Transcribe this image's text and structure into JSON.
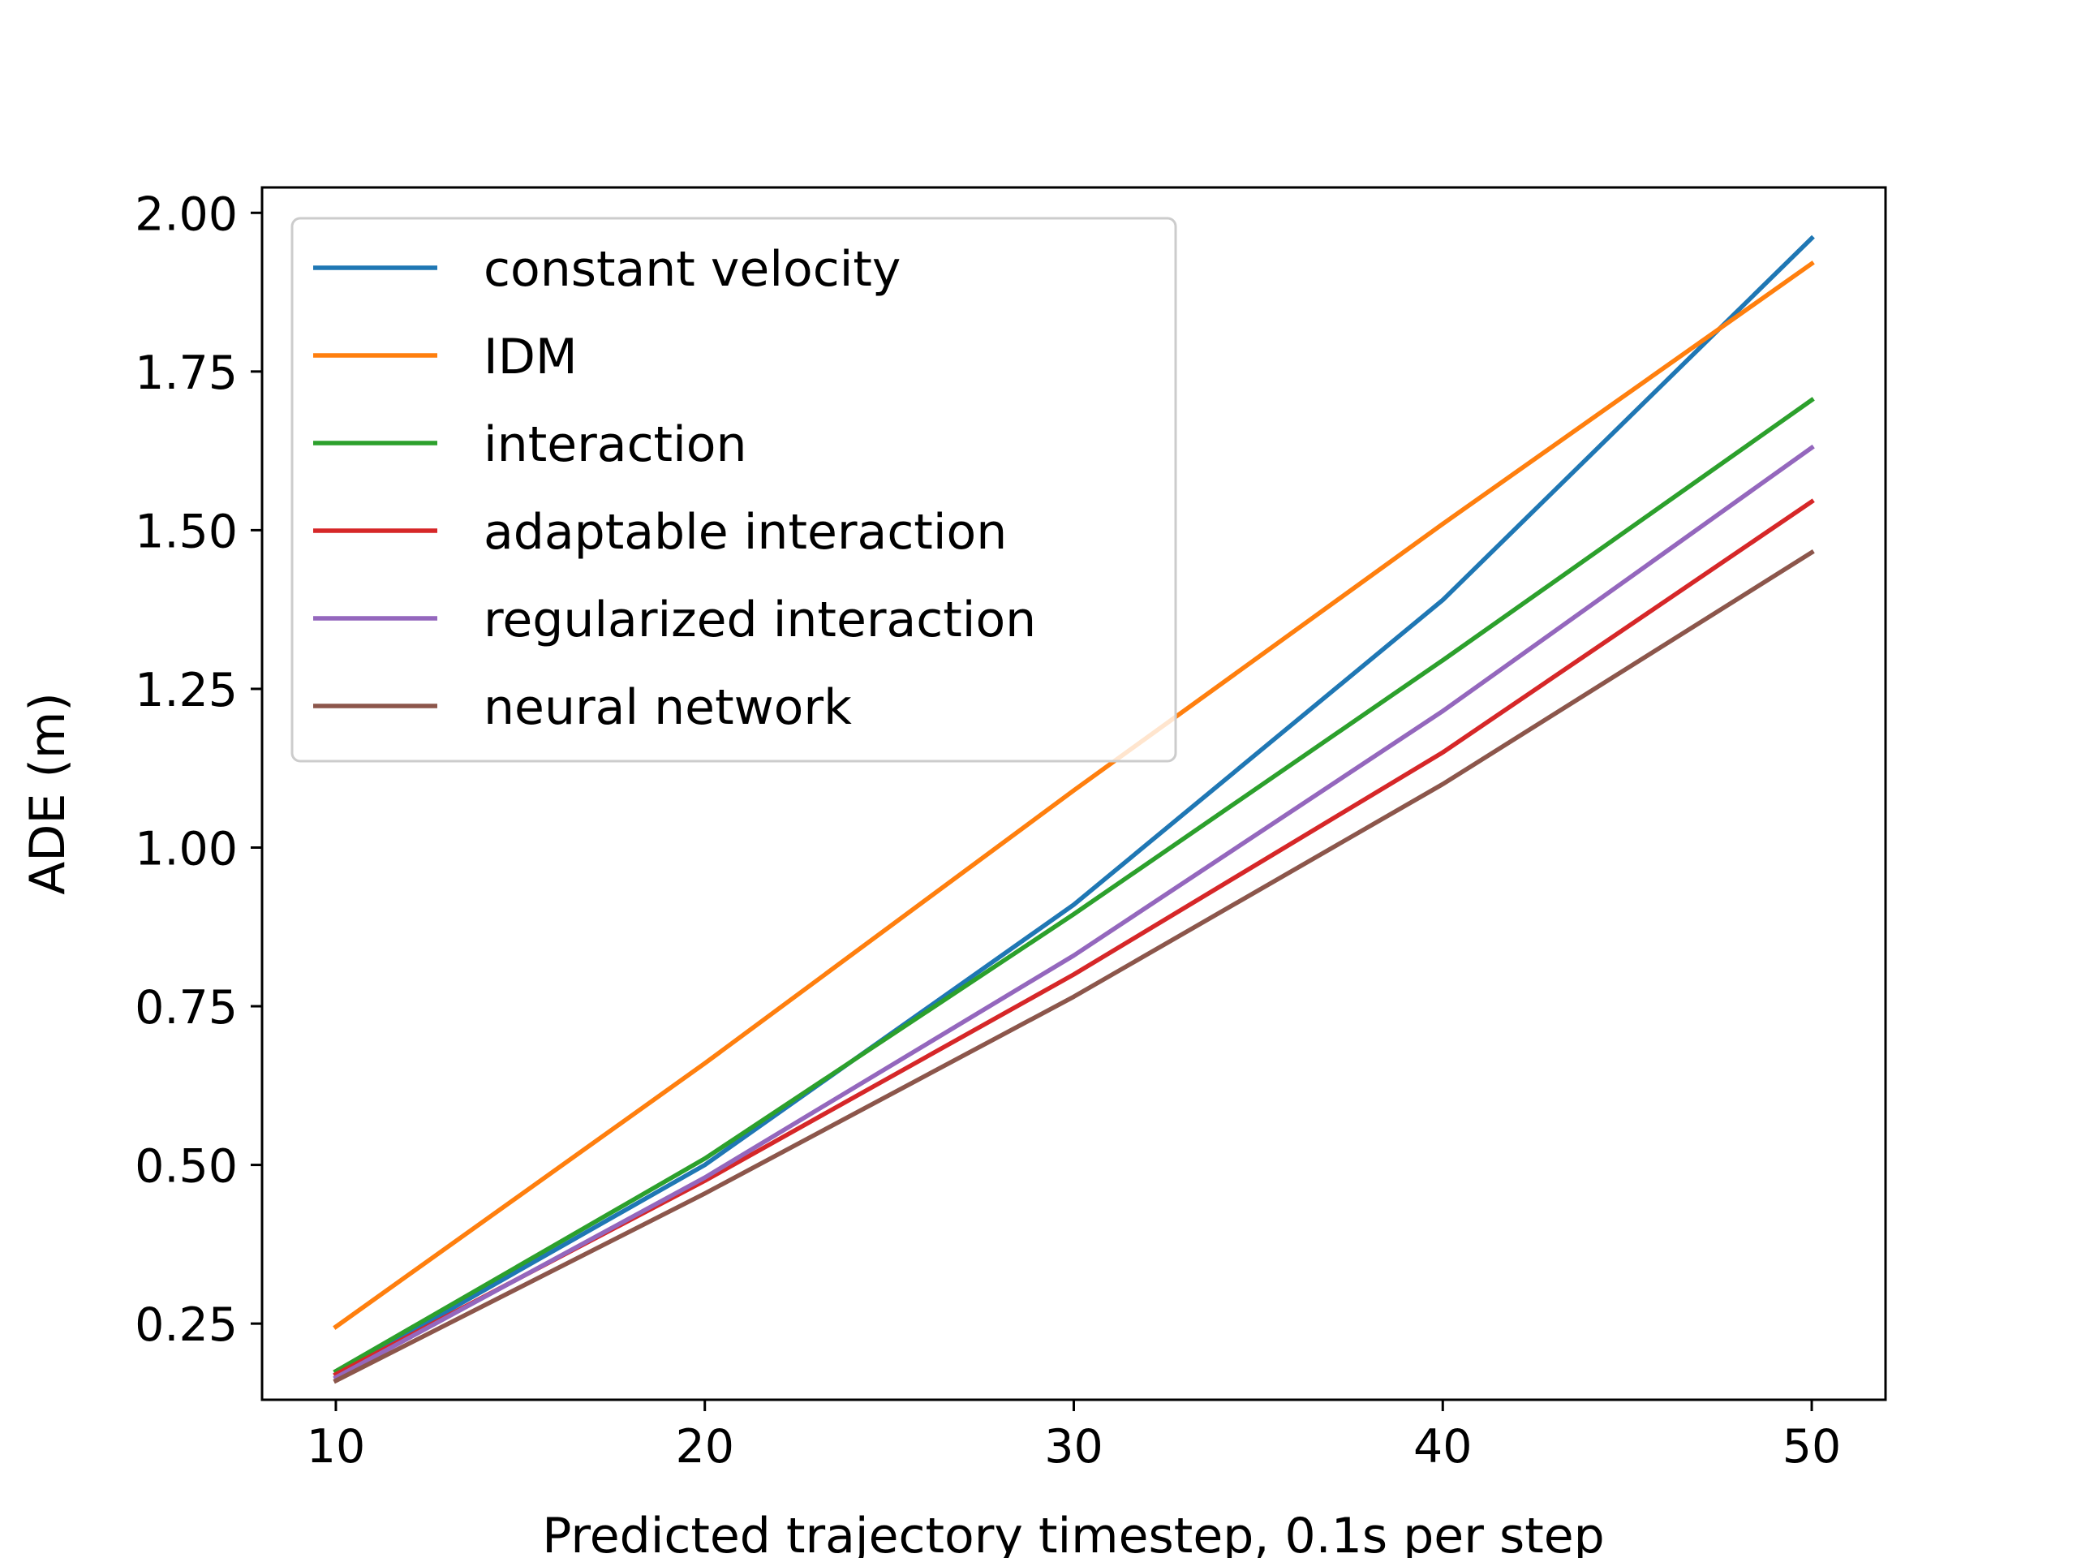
{
  "chart_data": {
    "type": "line",
    "title": "",
    "xlabel": "Predicted trajectory timestep, 0.1s per step",
    "ylabel": "ADE (m)",
    "x": [
      10,
      20,
      30,
      40,
      50
    ],
    "xlim": [
      8,
      52
    ],
    "ylim": [
      0.13,
      2.04
    ],
    "xticks": [
      10,
      20,
      30,
      40,
      50
    ],
    "yticks": [
      0.25,
      0.5,
      0.75,
      1.0,
      1.25,
      1.5,
      1.75,
      2.0
    ],
    "xtick_labels": [
      "10",
      "20",
      "30",
      "40",
      "50"
    ],
    "ytick_labels": [
      "0.25",
      "0.50",
      "0.75",
      "1.00",
      "1.25",
      "1.50",
      "1.75",
      "2.00"
    ],
    "grid": false,
    "legend_position": "upper-left",
    "series": [
      {
        "name": "constant velocity",
        "color": "#1f77b4",
        "values": [
          0.17,
          0.5,
          0.91,
          1.39,
          1.96
        ]
      },
      {
        "name": "IDM",
        "color": "#ff7f0e",
        "values": [
          0.245,
          0.66,
          1.09,
          1.51,
          1.92
        ]
      },
      {
        "name": "interaction",
        "color": "#2ca02c",
        "values": [
          0.175,
          0.51,
          0.895,
          1.295,
          1.705
        ]
      },
      {
        "name": "adaptable interaction",
        "color": "#d62728",
        "values": [
          0.17,
          0.475,
          0.8,
          1.15,
          1.545
        ]
      },
      {
        "name": "regularized interaction",
        "color": "#9467bd",
        "values": [
          0.165,
          0.48,
          0.83,
          1.215,
          1.63
        ]
      },
      {
        "name": "neural network",
        "color": "#8c564b",
        "values": [
          0.16,
          0.455,
          0.765,
          1.1,
          1.465
        ]
      }
    ]
  }
}
